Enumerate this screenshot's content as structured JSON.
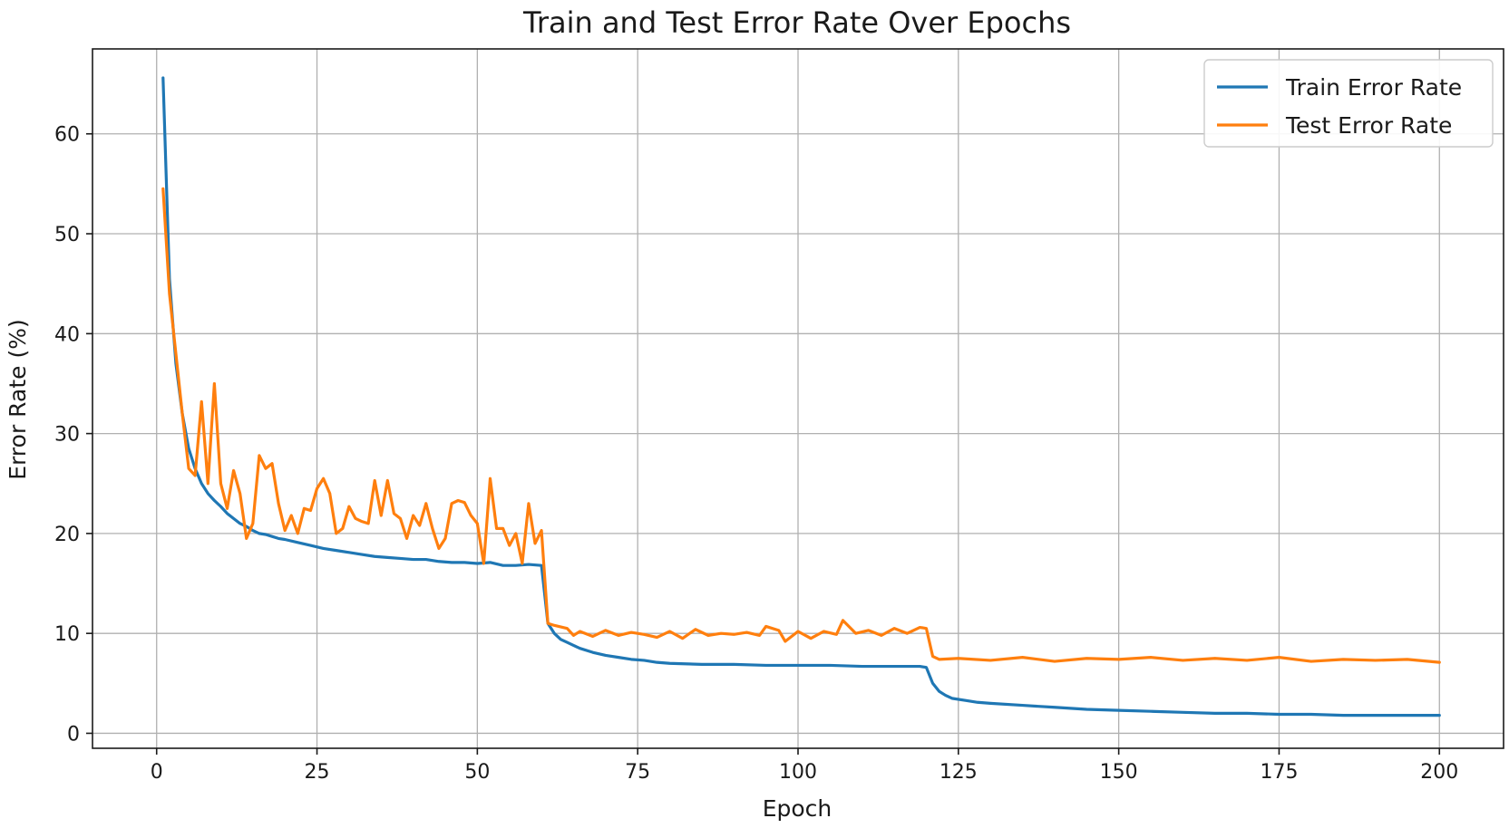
{
  "chart_data": {
    "type": "line",
    "title": "Train and Test Error Rate Over Epochs",
    "xlabel": "Epoch",
    "ylabel": "Error Rate (%)",
    "xlim": [
      -10,
      210
    ],
    "ylim": [
      -1.5,
      68.5
    ],
    "xticks": [
      0,
      25,
      50,
      75,
      100,
      125,
      150,
      175,
      200
    ],
    "yticks": [
      0,
      10,
      20,
      30,
      40,
      50,
      60
    ],
    "grid": true,
    "legend_position": "top-right",
    "series": [
      {
        "name": "Train Error Rate",
        "color": "#1f77b4",
        "points": [
          [
            1,
            65.6
          ],
          [
            2,
            45.5
          ],
          [
            3,
            37.0
          ],
          [
            4,
            32.0
          ],
          [
            5,
            28.5
          ],
          [
            6,
            26.5
          ],
          [
            7,
            25.0
          ],
          [
            8,
            24.0
          ],
          [
            9,
            23.3
          ],
          [
            10,
            22.7
          ],
          [
            11,
            22.0
          ],
          [
            12,
            21.5
          ],
          [
            13,
            21.0
          ],
          [
            14,
            20.7
          ],
          [
            15,
            20.3
          ],
          [
            16,
            20.0
          ],
          [
            17,
            19.9
          ],
          [
            18,
            19.7
          ],
          [
            19,
            19.5
          ],
          [
            20,
            19.4
          ],
          [
            22,
            19.1
          ],
          [
            24,
            18.8
          ],
          [
            26,
            18.5
          ],
          [
            28,
            18.3
          ],
          [
            30,
            18.1
          ],
          [
            32,
            17.9
          ],
          [
            34,
            17.7
          ],
          [
            36,
            17.6
          ],
          [
            38,
            17.5
          ],
          [
            40,
            17.4
          ],
          [
            42,
            17.4
          ],
          [
            44,
            17.2
          ],
          [
            46,
            17.1
          ],
          [
            48,
            17.1
          ],
          [
            50,
            17.0
          ],
          [
            52,
            17.1
          ],
          [
            54,
            16.8
          ],
          [
            56,
            16.8
          ],
          [
            58,
            16.9
          ],
          [
            60,
            16.8
          ],
          [
            61,
            11.0
          ],
          [
            62,
            10.0
          ],
          [
            63,
            9.4
          ],
          [
            64,
            9.1
          ],
          [
            65,
            8.8
          ],
          [
            66,
            8.5
          ],
          [
            68,
            8.1
          ],
          [
            70,
            7.8
          ],
          [
            72,
            7.6
          ],
          [
            74,
            7.4
          ],
          [
            76,
            7.3
          ],
          [
            78,
            7.1
          ],
          [
            80,
            7.0
          ],
          [
            85,
            6.9
          ],
          [
            90,
            6.9
          ],
          [
            95,
            6.8
          ],
          [
            100,
            6.8
          ],
          [
            105,
            6.8
          ],
          [
            110,
            6.7
          ],
          [
            115,
            6.7
          ],
          [
            119,
            6.7
          ],
          [
            120,
            6.6
          ],
          [
            121,
            5.0
          ],
          [
            122,
            4.2
          ],
          [
            123,
            3.8
          ],
          [
            124,
            3.5
          ],
          [
            126,
            3.3
          ],
          [
            128,
            3.1
          ],
          [
            130,
            3.0
          ],
          [
            135,
            2.8
          ],
          [
            140,
            2.6
          ],
          [
            145,
            2.4
          ],
          [
            150,
            2.3
          ],
          [
            155,
            2.2
          ],
          [
            160,
            2.1
          ],
          [
            165,
            2.0
          ],
          [
            170,
            2.0
          ],
          [
            175,
            1.9
          ],
          [
            180,
            1.9
          ],
          [
            185,
            1.8
          ],
          [
            190,
            1.8
          ],
          [
            195,
            1.8
          ],
          [
            200,
            1.8
          ]
        ]
      },
      {
        "name": "Test Error Rate",
        "color": "#ff7f0e",
        "points": [
          [
            1,
            54.5
          ],
          [
            2,
            44.0
          ],
          [
            3,
            38.0
          ],
          [
            4,
            32.0
          ],
          [
            5,
            26.5
          ],
          [
            6,
            25.8
          ],
          [
            7,
            33.2
          ],
          [
            8,
            25.0
          ],
          [
            9,
            35.0
          ],
          [
            10,
            25.0
          ],
          [
            11,
            22.5
          ],
          [
            12,
            26.3
          ],
          [
            13,
            24.0
          ],
          [
            14,
            19.5
          ],
          [
            15,
            21.0
          ],
          [
            16,
            27.8
          ],
          [
            17,
            26.5
          ],
          [
            18,
            27.0
          ],
          [
            19,
            23.0
          ],
          [
            20,
            20.3
          ],
          [
            21,
            21.8
          ],
          [
            22,
            20.0
          ],
          [
            23,
            22.5
          ],
          [
            24,
            22.3
          ],
          [
            25,
            24.5
          ],
          [
            26,
            25.5
          ],
          [
            27,
            24.0
          ],
          [
            28,
            20.0
          ],
          [
            29,
            20.5
          ],
          [
            30,
            22.7
          ],
          [
            31,
            21.5
          ],
          [
            32,
            21.2
          ],
          [
            33,
            21.0
          ],
          [
            34,
            25.3
          ],
          [
            35,
            21.8
          ],
          [
            36,
            25.3
          ],
          [
            37,
            22.0
          ],
          [
            38,
            21.5
          ],
          [
            39,
            19.5
          ],
          [
            40,
            21.8
          ],
          [
            41,
            20.8
          ],
          [
            42,
            23.0
          ],
          [
            43,
            20.5
          ],
          [
            44,
            18.5
          ],
          [
            45,
            19.5
          ],
          [
            46,
            23.0
          ],
          [
            47,
            23.3
          ],
          [
            48,
            23.1
          ],
          [
            49,
            21.8
          ],
          [
            50,
            21.0
          ],
          [
            51,
            17.0
          ],
          [
            52,
            25.5
          ],
          [
            53,
            20.5
          ],
          [
            54,
            20.5
          ],
          [
            55,
            18.8
          ],
          [
            56,
            20.0
          ],
          [
            57,
            17.0
          ],
          [
            58,
            23.0
          ],
          [
            59,
            19.0
          ],
          [
            60,
            20.3
          ],
          [
            61,
            11.0
          ],
          [
            62,
            10.8
          ],
          [
            64,
            10.5
          ],
          [
            65,
            9.8
          ],
          [
            66,
            10.2
          ],
          [
            68,
            9.7
          ],
          [
            70,
            10.3
          ],
          [
            72,
            9.8
          ],
          [
            74,
            10.1
          ],
          [
            76,
            9.9
          ],
          [
            78,
            9.6
          ],
          [
            80,
            10.2
          ],
          [
            82,
            9.5
          ],
          [
            84,
            10.4
          ],
          [
            86,
            9.8
          ],
          [
            88,
            10.0
          ],
          [
            90,
            9.9
          ],
          [
            92,
            10.1
          ],
          [
            94,
            9.8
          ],
          [
            95,
            10.7
          ],
          [
            97,
            10.3
          ],
          [
            98,
            9.2
          ],
          [
            100,
            10.2
          ],
          [
            102,
            9.5
          ],
          [
            104,
            10.2
          ],
          [
            106,
            9.9
          ],
          [
            107,
            11.3
          ],
          [
            109,
            10.0
          ],
          [
            111,
            10.3
          ],
          [
            113,
            9.8
          ],
          [
            115,
            10.5
          ],
          [
            117,
            10.0
          ],
          [
            119,
            10.6
          ],
          [
            120,
            10.5
          ],
          [
            121,
            7.7
          ],
          [
            122,
            7.4
          ],
          [
            125,
            7.5
          ],
          [
            130,
            7.3
          ],
          [
            135,
            7.6
          ],
          [
            140,
            7.2
          ],
          [
            145,
            7.5
          ],
          [
            150,
            7.4
          ],
          [
            155,
            7.6
          ],
          [
            160,
            7.3
          ],
          [
            165,
            7.5
          ],
          [
            170,
            7.3
          ],
          [
            175,
            7.6
          ],
          [
            180,
            7.2
          ],
          [
            185,
            7.4
          ],
          [
            190,
            7.3
          ],
          [
            195,
            7.4
          ],
          [
            200,
            7.1
          ]
        ]
      }
    ]
  }
}
